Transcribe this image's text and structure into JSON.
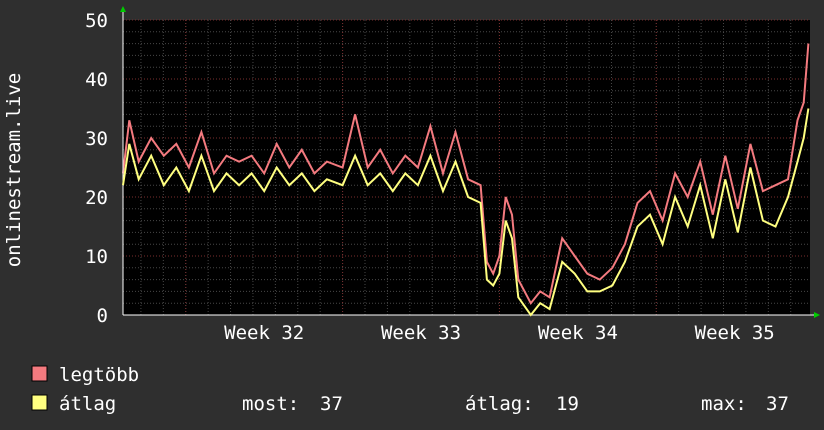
{
  "chart_data": {
    "type": "line",
    "ylabel": "onlinestream.live",
    "xlabel": "",
    "ylim": [
      0,
      50
    ],
    "yticks": [
      0,
      10,
      20,
      30,
      40,
      50
    ],
    "x_range": [
      31.6,
      35.98
    ],
    "xticks": [
      {
        "x": 32,
        "label": "Week 32"
      },
      {
        "x": 33,
        "label": "Week 33"
      },
      {
        "x": 34,
        "label": "Week 34"
      },
      {
        "x": 35,
        "label": "Week 35"
      }
    ],
    "grid": true,
    "legend_position": "bottom-left",
    "colors": {
      "background": "#2f2f2f",
      "plot_background": "#000000",
      "minor_grid": "#474747",
      "major_grid": "#7a2e2e",
      "max_series": "#f47a7f",
      "avg_series": "#ffff80",
      "arrow": "#00cc00"
    },
    "series": [
      {
        "name": "legtöbb",
        "x": [
          31.6,
          31.64,
          31.7,
          31.78,
          31.86,
          31.94,
          32.02,
          32.1,
          32.18,
          32.26,
          32.34,
          32.42,
          32.5,
          32.58,
          32.66,
          32.74,
          32.82,
          32.9,
          33.0,
          33.08,
          33.16,
          33.24,
          33.32,
          33.4,
          33.48,
          33.56,
          33.64,
          33.72,
          33.8,
          33.88,
          33.92,
          33.96,
          34.0,
          34.04,
          34.08,
          34.12,
          34.2,
          34.26,
          34.32,
          34.4,
          34.48,
          34.56,
          34.64,
          34.72,
          34.8,
          34.88,
          34.96,
          35.04,
          35.12,
          35.2,
          35.28,
          35.36,
          35.44,
          35.52,
          35.6,
          35.68,
          35.76,
          35.84,
          35.9,
          35.94,
          35.97
        ],
        "values": [
          24,
          33,
          26,
          30,
          27,
          29,
          25,
          31,
          24,
          27,
          26,
          27,
          24,
          29,
          25,
          28,
          24,
          26,
          25,
          34,
          25,
          28,
          24,
          27,
          25,
          32,
          24,
          31,
          23,
          22,
          9,
          7,
          10,
          20,
          17,
          6,
          2,
          4,
          3,
          13,
          10,
          7,
          6,
          8,
          12,
          19,
          21,
          16,
          24,
          20,
          26,
          17,
          27,
          18,
          29,
          21,
          22,
          23,
          33,
          36,
          46
        ]
      },
      {
        "name": "átlag",
        "x": [
          31.6,
          31.64,
          31.7,
          31.78,
          31.86,
          31.94,
          32.02,
          32.1,
          32.18,
          32.26,
          32.34,
          32.42,
          32.5,
          32.58,
          32.66,
          32.74,
          32.82,
          32.9,
          33.0,
          33.08,
          33.16,
          33.24,
          33.32,
          33.4,
          33.48,
          33.56,
          33.64,
          33.72,
          33.8,
          33.88,
          33.92,
          33.96,
          34.0,
          34.04,
          34.08,
          34.12,
          34.2,
          34.26,
          34.32,
          34.4,
          34.48,
          34.56,
          34.64,
          34.72,
          34.8,
          34.88,
          34.96,
          35.04,
          35.12,
          35.2,
          35.28,
          35.36,
          35.44,
          35.52,
          35.6,
          35.68,
          35.76,
          35.84,
          35.9,
          35.94,
          35.97
        ],
        "values": [
          22,
          29,
          23,
          27,
          22,
          25,
          21,
          27,
          21,
          24,
          22,
          24,
          21,
          25,
          22,
          24,
          21,
          23,
          22,
          27,
          22,
          24,
          21,
          24,
          22,
          27,
          21,
          26,
          20,
          19,
          6,
          5,
          7,
          16,
          13,
          3,
          0,
          2,
          1,
          9,
          7,
          4,
          4,
          5,
          9,
          15,
          17,
          12,
          20,
          15,
          22,
          13,
          23,
          14,
          25,
          16,
          15,
          20,
          26,
          30,
          35
        ]
      }
    ]
  },
  "legend": {
    "max_label": "legtöbb",
    "avg_label": "átlag",
    "now_label": "most:",
    "now_value": "37",
    "avg_stat_label": "átlag:",
    "avg_stat_value": "19",
    "max_stat_label": "max:",
    "max_stat_value": "37"
  }
}
